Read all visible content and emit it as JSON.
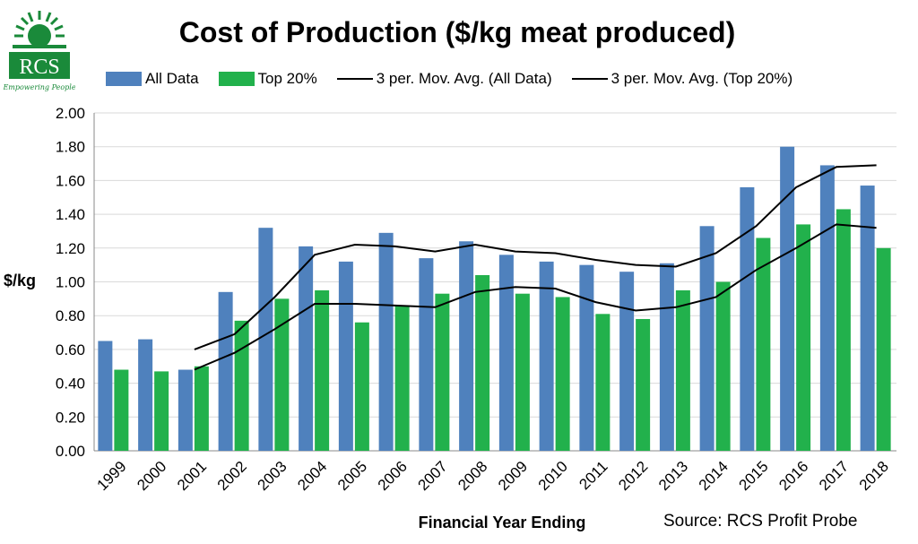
{
  "header": {
    "title": "Cost of Production ($/kg meat produced)",
    "source": "Source: RCS Profit Probe"
  },
  "logo": {
    "text": "RCS",
    "tagline": "Empowering People",
    "color": "#1a8a3a"
  },
  "chart_data": {
    "type": "bar",
    "title": "Cost of Production ($/kg meat produced)",
    "xlabel": "Financial Year Ending",
    "ylabel": "$/kg",
    "ylim": [
      0,
      2
    ],
    "yticks": [
      "0.00",
      "0.20",
      "0.40",
      "0.60",
      "0.80",
      "1.00",
      "1.20",
      "1.40",
      "1.60",
      "1.80",
      "2.00"
    ],
    "grid": true,
    "legend_position": "top",
    "categories": [
      "1999",
      "2000",
      "2001",
      "2002",
      "2003",
      "2004",
      "2005",
      "2006",
      "2007",
      "2008",
      "2009",
      "2010",
      "2011",
      "2012",
      "2013",
      "2014",
      "2015",
      "2016",
      "2017",
      "2018"
    ],
    "series": [
      {
        "name": "All Data",
        "kind": "bar",
        "color": "#4f81bd",
        "values": [
          0.65,
          0.66,
          0.48,
          0.94,
          1.32,
          1.21,
          1.12,
          1.29,
          1.14,
          1.24,
          1.16,
          1.12,
          1.1,
          1.06,
          1.11,
          1.33,
          1.56,
          1.8,
          1.69,
          1.57
        ]
      },
      {
        "name": "Top 20%",
        "kind": "bar",
        "color": "#22b14c",
        "values": [
          0.48,
          0.47,
          0.5,
          0.77,
          0.9,
          0.95,
          0.76,
          0.86,
          0.93,
          1.04,
          0.93,
          0.91,
          0.81,
          0.78,
          0.95,
          1.0,
          1.26,
          1.34,
          1.43,
          1.2
        ]
      },
      {
        "name": "3 per. Mov. Avg. (All Data)",
        "kind": "line",
        "color": "#000000",
        "values": [
          null,
          null,
          0.6,
          0.69,
          0.91,
          1.16,
          1.22,
          1.21,
          1.18,
          1.22,
          1.18,
          1.17,
          1.13,
          1.1,
          1.09,
          1.17,
          1.33,
          1.56,
          1.68,
          1.69
        ]
      },
      {
        "name": "3 per. Mov. Avg. (Top 20%)",
        "kind": "line",
        "color": "#000000",
        "values": [
          null,
          null,
          0.48,
          0.58,
          0.72,
          0.87,
          0.87,
          0.86,
          0.85,
          0.94,
          0.97,
          0.96,
          0.88,
          0.83,
          0.85,
          0.91,
          1.07,
          1.2,
          1.34,
          1.32
        ]
      }
    ]
  }
}
